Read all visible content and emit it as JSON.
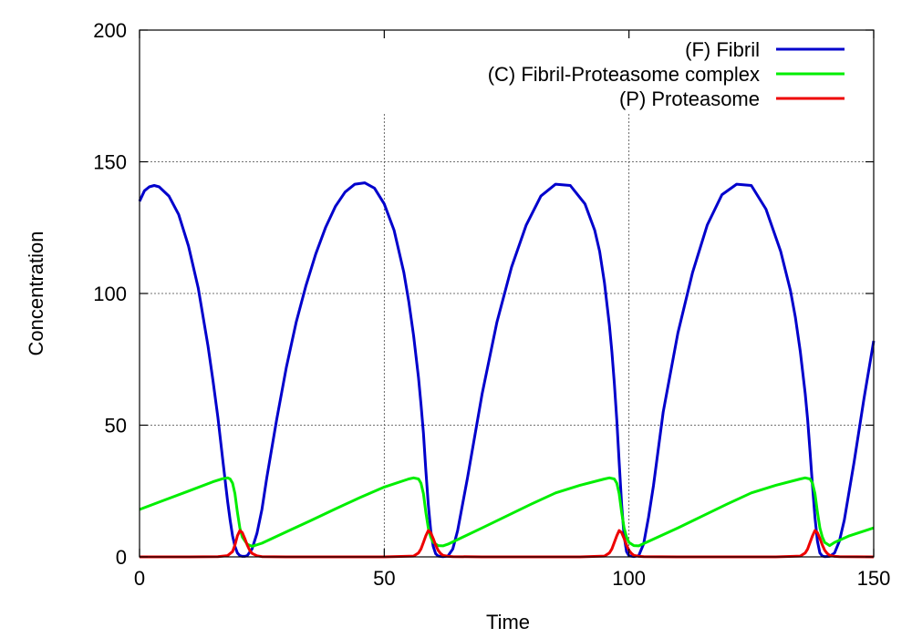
{
  "chart_data": {
    "type": "line",
    "xlabel": "Time",
    "ylabel": "Concentration",
    "xlim": [
      0,
      150
    ],
    "ylim": [
      0,
      200
    ],
    "xticks": [
      0,
      50,
      100,
      150
    ],
    "yticks": [
      0,
      50,
      100,
      150,
      200
    ],
    "grid": true,
    "legend_position": "top-right",
    "series": [
      {
        "name": "(F) Fibril",
        "color": "#0000cc",
        "x": [
          0,
          1,
          2,
          3,
          4,
          6,
          8,
          10,
          12,
          14,
          15,
          16,
          17,
          18,
          18.5,
          19,
          19.5,
          20,
          20.5,
          21,
          21.5,
          22,
          23,
          24,
          25,
          26,
          28,
          30,
          32,
          34,
          36,
          38,
          40,
          42,
          44,
          46,
          48,
          50,
          52,
          54,
          55,
          56,
          57,
          57.5,
          58,
          58.5,
          59,
          59.5,
          60,
          60.5,
          61,
          62,
          63,
          64,
          65,
          67,
          70,
          73,
          76,
          79,
          82,
          85,
          88,
          91,
          93,
          94,
          95,
          96,
          96.5,
          97,
          97.5,
          98,
          98.5,
          99,
          99.5,
          100,
          101,
          102,
          103,
          104,
          105,
          107,
          110,
          113,
          116,
          119,
          122,
          125,
          128,
          131,
          133,
          134,
          135,
          136,
          136.5,
          137,
          137.5,
          138,
          138.5,
          139,
          139.5,
          140,
          141,
          142,
          143,
          144,
          146,
          148,
          150
        ],
        "y": [
          135,
          139,
          140.5,
          141,
          140.5,
          137,
          130,
          118,
          102,
          80,
          67,
          53,
          37,
          21,
          14,
          8,
          4,
          1.5,
          0.5,
          0.2,
          0.2,
          0.5,
          3,
          9,
          18,
          30,
          52,
          72,
          89,
          103,
          115,
          125,
          133,
          138.5,
          141.5,
          142,
          140,
          134,
          124,
          108,
          97,
          84,
          68,
          58,
          47,
          33,
          20,
          10,
          4,
          1.2,
          0.3,
          0.1,
          0.3,
          3,
          10,
          30,
          62,
          89,
          110,
          126,
          137,
          141.5,
          141,
          134,
          124,
          116,
          104,
          88,
          78,
          66,
          52,
          36,
          20,
          8,
          2,
          0.4,
          0.1,
          0.5,
          5,
          15,
          27,
          55,
          85,
          108,
          126,
          137.5,
          141.5,
          141,
          132,
          116,
          101,
          91,
          78,
          62,
          52,
          40,
          27,
          15,
          6,
          1.5,
          0.3,
          0.1,
          0.2,
          1.5,
          6,
          14,
          36,
          60,
          82
        ]
      },
      {
        "name": "(C) Fibril-Proteasome complex",
        "color": "#00ee00",
        "x": [
          0,
          5,
          10,
          15,
          17,
          18,
          18.5,
          19,
          19.5,
          20,
          20.5,
          21,
          22,
          23,
          25,
          30,
          35,
          40,
          45,
          50,
          55,
          56,
          57,
          57.5,
          58,
          58.5,
          59,
          59.5,
          60,
          61,
          62,
          63,
          70,
          75,
          80,
          85,
          90,
          95,
          96,
          97,
          97.5,
          98,
          98.5,
          99,
          99.5,
          100,
          101,
          102,
          110,
          115,
          120,
          125,
          130,
          135,
          136,
          137,
          137.5,
          138,
          138.5,
          139,
          139.5,
          140,
          141,
          142,
          145,
          150
        ],
        "y": [
          18,
          21.5,
          25,
          28.5,
          29.7,
          30,
          29.6,
          28,
          24,
          17,
          11,
          7.5,
          4.8,
          4,
          5.2,
          9.5,
          13.8,
          18.2,
          22.5,
          26.5,
          29.6,
          30,
          29.6,
          28,
          24,
          17,
          11,
          7.5,
          5.5,
          4.3,
          4.2,
          4.8,
          11,
          15.5,
          20,
          24.3,
          27.2,
          29.6,
          30,
          29.6,
          28,
          24,
          17,
          11,
          7.5,
          5.5,
          4.3,
          4.2,
          11,
          15.5,
          20,
          24.3,
          27.2,
          29.6,
          30,
          29.6,
          28,
          24,
          17,
          11,
          7.5,
          5.5,
          4.3,
          5.5,
          8,
          11
        ]
      },
      {
        "name": "(P) Proteasome",
        "color": "#ee0000",
        "x": [
          0,
          10,
          16,
          18,
          19,
          19.5,
          20,
          20.5,
          21,
          21.5,
          22,
          22.5,
          23,
          24,
          25,
          30,
          50,
          56,
          57,
          57.5,
          58,
          58.5,
          59,
          59.5,
          60,
          60.5,
          61,
          61.5,
          62,
          63,
          64,
          70,
          90,
          95,
          96,
          96.5,
          97,
          97.5,
          98,
          98.5,
          99,
          99.5,
          100,
          100.5,
          101,
          102,
          103,
          110,
          130,
          135,
          136,
          136.5,
          137,
          137.5,
          138,
          138.5,
          139,
          139.5,
          140,
          140.5,
          141,
          142,
          143,
          150
        ],
        "y": [
          0,
          0,
          0.1,
          0.5,
          2,
          4.5,
          8,
          10,
          9.2,
          7,
          4.5,
          2.5,
          1.3,
          0.4,
          0.1,
          0,
          0,
          0.3,
          1.5,
          3,
          5.5,
          8,
          10,
          9.2,
          7,
          4.5,
          2.5,
          1.3,
          0.6,
          0.2,
          0.1,
          0,
          0,
          0.3,
          1.5,
          3,
          5.5,
          8,
          10,
          9.2,
          7,
          4.5,
          2.5,
          1.3,
          0.6,
          0.2,
          0.1,
          0,
          0,
          0.3,
          1.5,
          3,
          5.5,
          8,
          10,
          9.2,
          7,
          4.5,
          2.5,
          1.3,
          0.6,
          0.2,
          0.1,
          0
        ]
      }
    ]
  }
}
